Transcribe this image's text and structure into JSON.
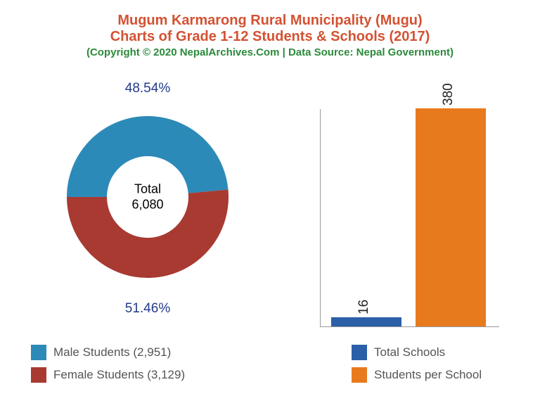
{
  "header": {
    "title_line1": "Mugum Karmarong Rural Municipality (Mugu)",
    "title_line2": "Charts of Grade 1-12 Students & Schools (2017)",
    "title_color": "#d35232",
    "copyright": "(Copyright © 2020 NepalArchives.Com | Data Source: Nepal Government)",
    "copyright_color": "#2a8a3a"
  },
  "donut": {
    "male_pct": 48.54,
    "female_pct": 51.46,
    "male_pct_label": "48.54%",
    "female_pct_label": "51.46%",
    "center_label_top": "Total",
    "center_label_bottom": "6,080",
    "pct_label_color": "#233a8a",
    "male_color": "#2c8ab8",
    "female_color": "#a83a32",
    "legend_male": "Male Students (2,951)",
    "legend_female": "Female Students (3,129)",
    "legend_text_color": "#555555"
  },
  "bar": {
    "schools_value": 16,
    "students_per_school_value": 380,
    "schools_label": "16",
    "students_label": "380",
    "schools_color": "#2b5fa8",
    "students_color": "#e87a1e",
    "legend_schools": "Total Schools",
    "legend_students": "Students per School",
    "legend_text_color": "#555555",
    "ymax_rendered": 380
  },
  "background_color": "#ffffff"
}
